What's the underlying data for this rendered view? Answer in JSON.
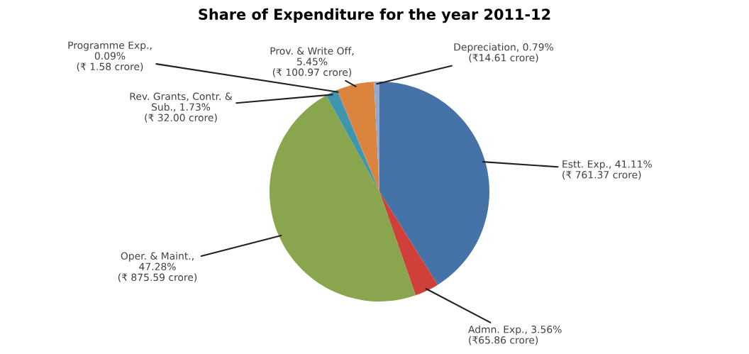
{
  "chart_data": {
    "type": "pie",
    "title": "Share of Expenditure for the year 2011-12",
    "categories": [
      "Estt. Exp., 41.11%\n(₹ 761.37 crore)",
      "Admn. Exp., 3.56%\n(₹65.86 crore)",
      "Oper. & Maint.,\n47.28%\n(₹ 875.59 crore)",
      "Rev. Grants, Contr. &\nSub., 1.73%\n(₹ 32.00 crore)",
      "Programme Exp.,\n0.09%\n(₹ 1.58 crore)",
      "Prov. & Write Off,\n5.45%\n(₹ 100.97 crore)",
      "Depreciation, 0.79%\n(₹14.61 crore)"
    ],
    "values": [
      41.11,
      3.56,
      47.28,
      1.73,
      0.09,
      5.45,
      0.79
    ],
    "colors": [
      "#4572a7",
      "#d0403a",
      "#89a54e",
      "#3d96ae",
      "#80699b",
      "#db843d",
      "#93a9cf"
    ]
  }
}
